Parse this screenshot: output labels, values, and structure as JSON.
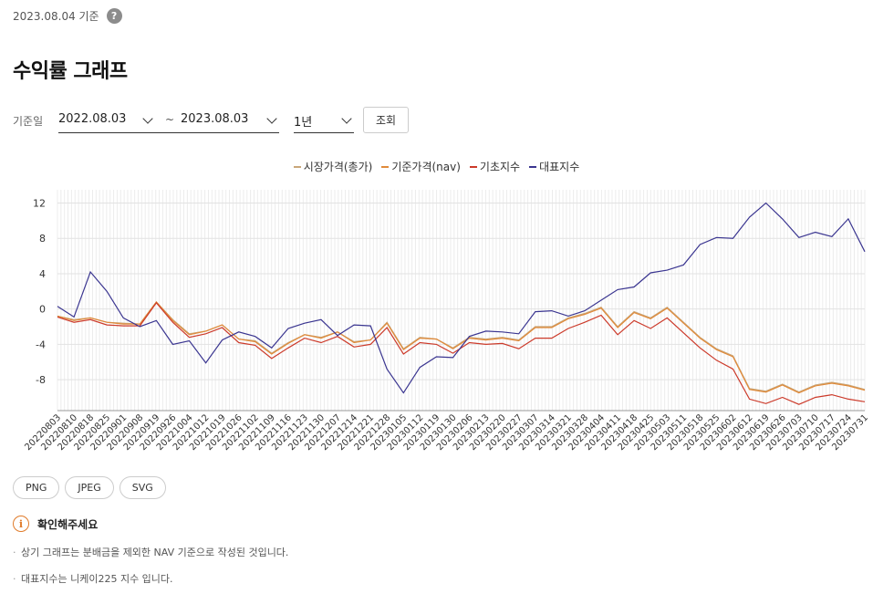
{
  "asof": {
    "text": "2023.08.04 기준",
    "help": "?"
  },
  "title": "수익률 그래프",
  "filter": {
    "label": "기준일",
    "start_date": "2022.08.03",
    "tilde": "~",
    "end_date": "2023.08.03",
    "period": "1년",
    "search_label": "조회"
  },
  "legend": [
    {
      "name": "시장가격(총가)",
      "color": "#c9a77a"
    },
    {
      "name": "기준가격(nav)",
      "color": "#e08a3a"
    },
    {
      "name": "기초지수",
      "color": "#cc3a2a"
    },
    {
      "name": "대표지수",
      "color": "#3a3590"
    }
  ],
  "export": {
    "png": "PNG",
    "jpeg": "JPEG",
    "svg": "SVG"
  },
  "notice": {
    "icon": "i",
    "heading": "확인해주세요",
    "items": [
      "상기 그래프는 분배금을 제외한 NAV 기준으로 작성된 것입니다.",
      "대표지수는 니케이225 지수 입니다."
    ]
  },
  "chart_data": {
    "type": "line",
    "y_ticks": [
      12,
      8,
      4,
      0,
      -4,
      -8
    ],
    "ylim": [
      -11.5,
      13.5
    ],
    "grid": true,
    "legend_position": "top-center",
    "x_ticks": [
      "20220803",
      "20220810",
      "20220818",
      "20220825",
      "20220901",
      "20220908",
      "20220919",
      "20220926",
      "20221004",
      "20221012",
      "20221019",
      "20221026",
      "20221102",
      "20221109",
      "20221116",
      "20221123",
      "20221130",
      "20221207",
      "20221214",
      "20221221",
      "20221228",
      "20230105",
      "20230112",
      "20230119",
      "20230130",
      "20230206",
      "20230213",
      "20230220",
      "20230227",
      "20230307",
      "20230314",
      "20230321",
      "20230328",
      "20230404",
      "20230411",
      "20230418",
      "20230425",
      "20230503",
      "20230511",
      "20230518",
      "20230525",
      "20230602",
      "20230612",
      "20230619",
      "20230626",
      "20230703",
      "20230710",
      "20230717",
      "20230724",
      "20230731"
    ],
    "series": [
      {
        "name": "시장가격(총가)",
        "color": "#c9a77a",
        "values": [
          -0.8,
          -1.2,
          -1.0,
          -1.5,
          -1.6,
          -1.7,
          0.8,
          -1.2,
          -2.8,
          -2.5,
          -1.8,
          -3.4,
          -3.6,
          -5.0,
          -3.8,
          -2.9,
          -3.2,
          -2.6,
          -3.7,
          -3.5,
          -1.5,
          -4.5,
          -3.2,
          -3.4,
          -4.4,
          -3.2,
          -3.4,
          -3.2,
          -3.5,
          -2.0,
          -2.0,
          -1.0,
          -0.5,
          0.2,
          -2.0,
          -0.3,
          -1.0,
          0.2,
          -1.5,
          -3.2,
          -4.5,
          -5.3,
          -9.0,
          -9.3,
          -8.5,
          -9.4,
          -8.6,
          -8.3,
          -8.6,
          -9.1
        ]
      },
      {
        "name": "기준가격(nav)",
        "color": "#e08a3a",
        "values": [
          -0.8,
          -1.3,
          -1.0,
          -1.5,
          -1.7,
          -1.7,
          0.8,
          -1.3,
          -2.9,
          -2.5,
          -1.8,
          -3.4,
          -3.7,
          -5.1,
          -3.9,
          -2.9,
          -3.3,
          -2.6,
          -3.8,
          -3.5,
          -1.6,
          -4.6,
          -3.3,
          -3.4,
          -4.5,
          -3.3,
          -3.5,
          -3.3,
          -3.6,
          -2.1,
          -2.1,
          -1.1,
          -0.6,
          0.1,
          -2.1,
          -0.4,
          -1.1,
          0.1,
          -1.6,
          -3.3,
          -4.6,
          -5.4,
          -9.1,
          -9.4,
          -8.6,
          -9.5,
          -8.7,
          -8.4,
          -8.7,
          -9.2
        ]
      },
      {
        "name": "기초지수",
        "color": "#cc3a2a",
        "values": [
          -0.9,
          -1.5,
          -1.2,
          -1.8,
          -1.9,
          -1.9,
          0.7,
          -1.5,
          -3.2,
          -2.8,
          -2.1,
          -3.8,
          -4.1,
          -5.6,
          -4.4,
          -3.3,
          -3.8,
          -3.1,
          -4.3,
          -4.0,
          -2.1,
          -5.1,
          -3.8,
          -4.0,
          -5.0,
          -3.8,
          -4.0,
          -3.9,
          -4.5,
          -3.3,
          -3.3,
          -2.2,
          -1.5,
          -0.7,
          -2.9,
          -1.3,
          -2.2,
          -1.0,
          -2.7,
          -4.4,
          -5.8,
          -6.8,
          -10.2,
          -10.7,
          -10.0,
          -10.8,
          -10.0,
          -9.7,
          -10.2,
          -10.5
        ]
      },
      {
        "name": "대표지수",
        "color": "#3a3590",
        "values": [
          0.3,
          -0.9,
          4.2,
          2.0,
          -1.0,
          -2.0,
          -1.3,
          -4.0,
          -3.6,
          -6.1,
          -3.5,
          -2.6,
          -3.1,
          -4.4,
          -2.2,
          -1.6,
          -1.2,
          -3.0,
          -1.8,
          -1.9,
          -6.8,
          -9.5,
          -6.6,
          -5.4,
          -5.5,
          -3.1,
          -2.5,
          -2.6,
          -2.8,
          -0.3,
          -0.2,
          -0.8,
          -0.2,
          1.0,
          2.2,
          2.5,
          4.1,
          4.4,
          5.0,
          7.3,
          8.1,
          8.0,
          10.4,
          12.0,
          10.2,
          8.1,
          8.7,
          8.2,
          10.2,
          6.5
        ]
      }
    ]
  }
}
